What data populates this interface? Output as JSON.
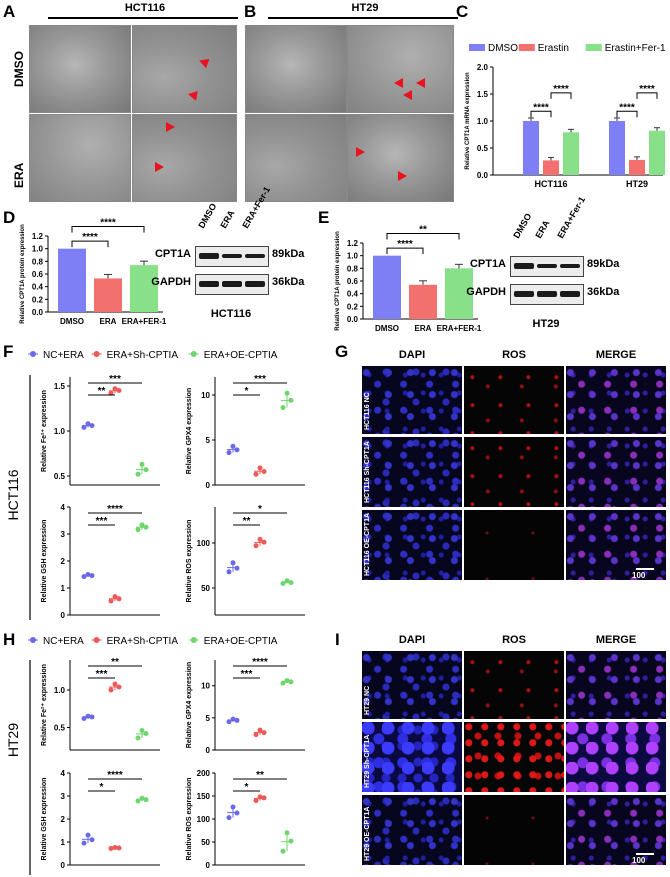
{
  "panels": {
    "A": {
      "letter": "A",
      "title": "HCT116",
      "rows": [
        "DMSO",
        "ERA"
      ]
    },
    "B": {
      "letter": "B",
      "title": "HT29"
    },
    "C": {
      "letter": "C"
    },
    "D": {
      "letter": "D",
      "wb_title": "HCT116"
    },
    "E": {
      "letter": "E",
      "wb_title": "HT29"
    },
    "F": {
      "letter": "F",
      "cell": "HCT116"
    },
    "G": {
      "letter": "G",
      "cols": [
        "DAPI",
        "ROS",
        "MERGE"
      ],
      "rows": [
        "HCT116 NC",
        "HCT116 Sh-CPT1A",
        "HCT116 OE-CPT1A"
      ],
      "scale": "100 μm"
    },
    "H": {
      "letter": "H",
      "cell": "HT29"
    },
    "I": {
      "letter": "I",
      "cols": [
        "DAPI",
        "ROS",
        "MERGE"
      ],
      "rows": [
        "HT29 NC",
        "HT29 Sh-CPT1A",
        "HT29 OE-CPT1A"
      ],
      "scale": "100 μm"
    }
  },
  "western": {
    "lanes": [
      "DMSO",
      "ERA",
      "ERA+Fer-1"
    ],
    "proteins": [
      {
        "name": "CPT1A",
        "kda": "89kDa"
      },
      {
        "name": "GAPDH",
        "kda": "36kDa"
      }
    ]
  },
  "colors": {
    "blue": "#7f7ff5",
    "red": "#f2706d",
    "green": "#88e088",
    "blueDot": "#6a6ae8",
    "redDot": "#ee5a57",
    "greenDot": "#6fd66f"
  },
  "chart_data": [
    {
      "id": "C",
      "type": "bar",
      "ylabel": "Relative CPT1A mRNA expression",
      "categories": [
        "HCT116",
        "HT29"
      ],
      "series": [
        {
          "name": "DMSO",
          "values": [
            1.0,
            1.0
          ]
        },
        {
          "name": "Erastin",
          "values": [
            0.27,
            0.28
          ]
        },
        {
          "name": "Erastin+Fer-1",
          "values": [
            0.79,
            0.82
          ]
        }
      ],
      "ylim": [
        0,
        2.0
      ],
      "yticks": [
        "0.0",
        "0.5",
        "1.0",
        "1.5",
        "2.0"
      ],
      "legend": "top",
      "sig": [
        "****",
        "****",
        "****",
        "****"
      ]
    },
    {
      "id": "D",
      "type": "bar",
      "ylabel": "Relative CPT1A protein expression",
      "categories": [
        "DMSO",
        "ERA",
        "ERA+FER-1"
      ],
      "values": [
        1.0,
        0.53,
        0.74
      ],
      "ylim": [
        0,
        1.2
      ],
      "yticks": [
        "0.0",
        "0.2",
        "0.4",
        "0.6",
        "0.8",
        "1.0",
        "1.2"
      ],
      "sig": [
        "****",
        "****"
      ]
    },
    {
      "id": "E",
      "type": "bar",
      "ylabel": "Relative CPT1A protein expression",
      "categories": [
        "DMSO",
        "ERA",
        "ERA+FER-1"
      ],
      "values": [
        1.0,
        0.54,
        0.8
      ],
      "ylim": [
        0,
        1.2
      ],
      "yticks": [
        "0.0",
        "0.2",
        "0.4",
        "0.6",
        "0.8",
        "1.0",
        "1.2"
      ],
      "sig": [
        "****",
        "**"
      ]
    },
    {
      "id": "F-legend",
      "type": "scatter",
      "series": [
        {
          "name": "NC+ERA"
        },
        {
          "name": "ERA+Sh-CPTIA"
        },
        {
          "name": "ERA+OE-CPTIA"
        }
      ]
    },
    {
      "id": "F1",
      "type": "scatter",
      "ylabel": "Relative Fe²⁺ expression",
      "groups": [
        [
          1.04,
          1.08,
          1.06
        ],
        [
          1.42,
          1.47,
          1.45
        ],
        [
          0.52,
          0.63,
          0.57
        ]
      ],
      "ylim": [
        0.4,
        1.6
      ],
      "yticks": [
        "0.5",
        "1.0",
        "1.5"
      ],
      "sig": [
        "**",
        "***"
      ]
    },
    {
      "id": "F2",
      "type": "scatter",
      "ylabel": "Relative GPX4 expression",
      "groups": [
        [
          3.6,
          4.3,
          3.9
        ],
        [
          1.2,
          1.9,
          1.5
        ],
        [
          8.6,
          10.2,
          9.4
        ]
      ],
      "ylim": [
        0,
        12
      ],
      "yticks": [
        "0",
        "5",
        "10"
      ],
      "sig": [
        "*",
        "***"
      ]
    },
    {
      "id": "F3",
      "type": "scatter",
      "ylabel": "Relative GSH expression",
      "groups": [
        [
          1.42,
          1.5,
          1.46
        ],
        [
          0.52,
          0.68,
          0.6
        ],
        [
          3.16,
          3.34,
          3.25
        ]
      ],
      "ylim": [
        0,
        4
      ],
      "yticks": [
        "0",
        "1",
        "2",
        "3",
        "4"
      ],
      "sig": [
        "***",
        "****"
      ]
    },
    {
      "id": "F4",
      "type": "scatter",
      "ylabel": "Relative ROS expression",
      "groups": [
        [
          68,
          78,
          72
        ],
        [
          97,
          104,
          101
        ],
        [
          55,
          58,
          56
        ]
      ],
      "ylim": [
        20,
        140
      ],
      "yticks": [
        "50",
        "100"
      ],
      "sig": [
        "**",
        "*"
      ]
    },
    {
      "id": "H1",
      "type": "scatter",
      "ylabel": "Relative Fe²⁺ expression",
      "groups": [
        [
          0.62,
          0.65,
          0.64
        ],
        [
          1.0,
          1.08,
          1.04
        ],
        [
          0.36,
          0.46,
          0.42
        ]
      ],
      "ylim": [
        0.2,
        1.4
      ],
      "yticks": [
        "0.5",
        "1.0"
      ],
      "sig": [
        "***",
        "**"
      ]
    },
    {
      "id": "H2",
      "type": "scatter",
      "ylabel": "Relative GPX4 expression",
      "groups": [
        [
          4.4,
          4.8,
          4.6
        ],
        [
          2.4,
          3.1,
          2.7
        ],
        [
          10.4,
          10.8,
          10.6
        ]
      ],
      "ylim": [
        0,
        14
      ],
      "yticks": [
        "0",
        "5",
        "10"
      ],
      "sig": [
        "***",
        "****"
      ]
    },
    {
      "id": "H3",
      "type": "scatter",
      "ylabel": "Relative GSH expression",
      "groups": [
        [
          0.95,
          1.3,
          1.1
        ],
        [
          0.72,
          0.76,
          0.74
        ],
        [
          2.78,
          2.9,
          2.84
        ]
      ],
      "ylim": [
        0,
        4
      ],
      "yticks": [
        "0",
        "1",
        "2",
        "3",
        "4"
      ],
      "sig": [
        "*",
        "****"
      ]
    },
    {
      "id": "H4",
      "type": "scatter",
      "ylabel": "Relative ROS expression",
      "groups": [
        [
          103,
          126,
          113
        ],
        [
          140,
          148,
          146
        ],
        [
          30,
          70,
          52
        ]
      ],
      "ylim": [
        0,
        200
      ],
      "yticks": [
        "0",
        "50",
        "100",
        "150",
        "200"
      ],
      "sig": [
        "*",
        "**"
      ]
    }
  ]
}
